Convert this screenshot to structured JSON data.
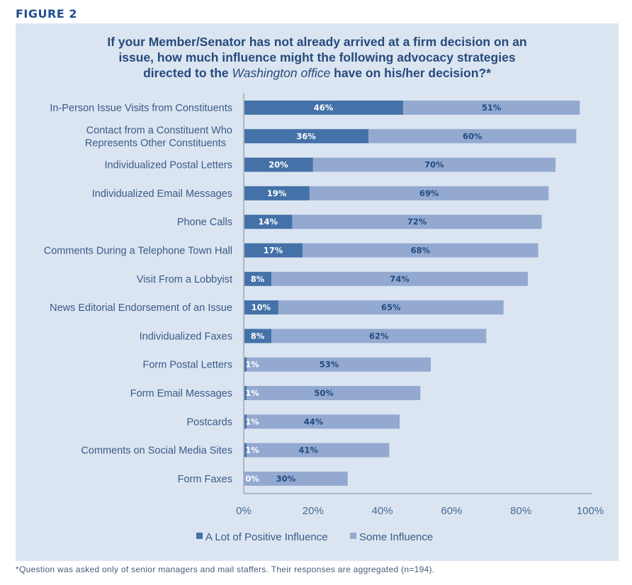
{
  "figure_label": "FIGURE 2",
  "title": {
    "line1": "If your Member/Senator has not already arrived at a firm decision on an",
    "line2": "issue, how much influence might the following advocacy strategies",
    "line3_pre": "directed to the ",
    "line3_em": "Washington office",
    "line3_post": " have on his/her decision?*"
  },
  "footnote": "*Question was asked only of senior managers and mail staffers. Their responses are aggregated (n=194).",
  "colors": {
    "a_lot": "#4472a8",
    "some": "#93a9d0",
    "panel": "#dbe5f1",
    "axis": "#a0a8b4"
  },
  "chart_data": {
    "type": "bar",
    "orientation": "horizontal",
    "stacked": true,
    "title": "If your Member/Senator has not already arrived at a firm decision on an issue, how much influence might the following advocacy strategies directed to the Washington office have on his/her decision?*",
    "xlabel": "",
    "ylabel": "",
    "xlim": [
      0,
      100
    ],
    "x_ticks": [
      "0%",
      "20%",
      "40%",
      "60%",
      "80%",
      "100%"
    ],
    "grid": false,
    "legend_position": "bottom",
    "categories": [
      [
        "In-Person Issue Visits from Constituents"
      ],
      [
        "Contact from a Constituent Who",
        "Represents Other Constituents"
      ],
      [
        "Individualized Postal Letters"
      ],
      [
        "Individualized Email Messages"
      ],
      [
        "Phone Calls"
      ],
      [
        "Comments During a Telephone Town Hall"
      ],
      [
        "Visit From a Lobbyist"
      ],
      [
        "News Editorial Endorsement of an Issue"
      ],
      [
        "Individualized Faxes"
      ],
      [
        "Form Postal Letters"
      ],
      [
        "Form Email Messages"
      ],
      [
        "Postcards"
      ],
      [
        "Comments on Social Media Sites"
      ],
      [
        "Form Faxes"
      ]
    ],
    "series": [
      {
        "name": "A Lot of Positive Influence",
        "values": [
          46,
          36,
          20,
          19,
          14,
          17,
          8,
          10,
          8,
          1,
          1,
          1,
          1,
          0
        ]
      },
      {
        "name": "Some Influence",
        "values": [
          51,
          60,
          70,
          69,
          72,
          68,
          74,
          65,
          62,
          53,
          50,
          44,
          41,
          30
        ]
      }
    ]
  }
}
